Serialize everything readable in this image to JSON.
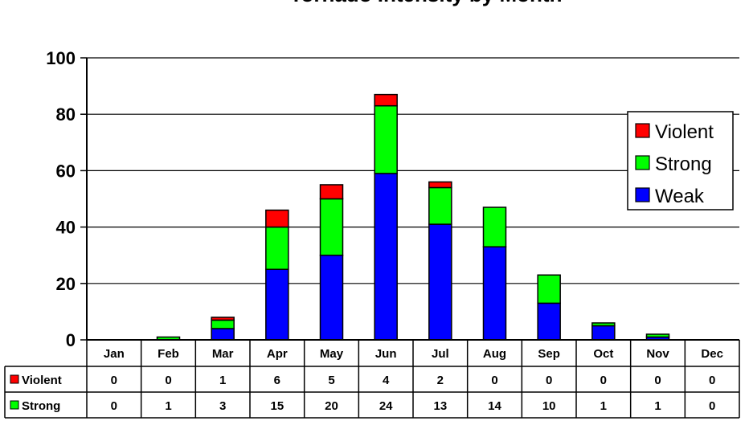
{
  "chart_data": {
    "type": "bar",
    "stacked": true,
    "title": "Tornado Intensity by Month",
    "categories": [
      "Jan",
      "Feb",
      "Mar",
      "Apr",
      "May",
      "Jun",
      "Jul",
      "Aug",
      "Sep",
      "Oct",
      "Nov",
      "Dec"
    ],
    "series": [
      {
        "name": "Weak",
        "color": "#0000ff",
        "values": [
          0,
          0,
          4,
          25,
          30,
          59,
          41,
          33,
          13,
          5,
          1,
          0
        ]
      },
      {
        "name": "Strong",
        "color": "#00ff00",
        "values": [
          0,
          1,
          3,
          15,
          20,
          24,
          13,
          14,
          10,
          1,
          1,
          0
        ]
      },
      {
        "name": "Violent",
        "color": "#ff0000",
        "values": [
          0,
          0,
          1,
          6,
          5,
          4,
          2,
          0,
          0,
          0,
          0,
          0
        ]
      }
    ],
    "ylim": [
      0,
      100
    ],
    "yticks": [
      0,
      20,
      40,
      60,
      80,
      100
    ],
    "grid": true,
    "legend": {
      "placement": "right",
      "order": [
        "Violent",
        "Strong",
        "Weak"
      ]
    },
    "data_table": {
      "rows": [
        {
          "label": "Violent",
          "color": "#ff0000",
          "values": [
            "0",
            "0",
            "1",
            "6",
            "5",
            "4",
            "2",
            "0",
            "0",
            "0",
            "0",
            "0"
          ]
        },
        {
          "label": "Strong",
          "color": "#00ff00",
          "values": [
            "0",
            "1",
            "3",
            "15",
            "20",
            "24",
            "13",
            "14",
            "10",
            "1",
            "1",
            "0"
          ]
        }
      ]
    }
  }
}
